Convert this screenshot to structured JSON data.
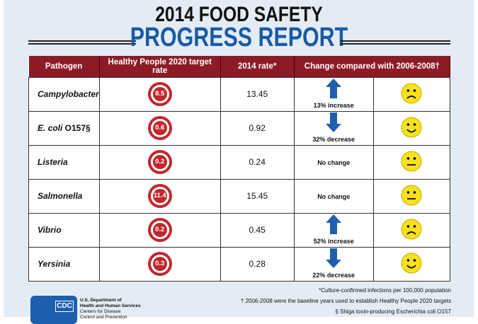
{
  "title_line1": "2014 FOOD SAFETY",
  "title_line2": "PROGRESS REPORT",
  "headers": [
    "Pathogen",
    "Healthy People 2020 target rate",
    "2014 rate*",
    "Change compared with 2006-2008†"
  ],
  "rows": [
    {
      "pathogen": "Campylobacter",
      "pathogen_suffix": "",
      "target": "8.5",
      "rate": "13.45",
      "change": "13% increase",
      "direction": "up",
      "face": "sad"
    },
    {
      "pathogen": "E. coli",
      "pathogen_suffix": " O157§",
      "target": "0.6",
      "rate": "0.92",
      "change": "32% decrease",
      "direction": "down",
      "face": "happy"
    },
    {
      "pathogen": "Listeria",
      "pathogen_suffix": "",
      "target": "0.2",
      "rate": "0.24",
      "change": "No change",
      "direction": "none",
      "face": "neutral"
    },
    {
      "pathogen": "Salmonella",
      "pathogen_suffix": "",
      "target": "11.4",
      "rate": "15.45",
      "change": "No change",
      "direction": "none",
      "face": "neutral"
    },
    {
      "pathogen": "Vibrio",
      "pathogen_suffix": "",
      "target": "0.2",
      "rate": "0.45",
      "change": "52% increase",
      "direction": "up",
      "face": "sad"
    },
    {
      "pathogen": "Yersinia",
      "pathogen_suffix": "",
      "target": "0.3",
      "rate": "0.28",
      "change": "22% decrease",
      "direction": "down",
      "face": "happy"
    }
  ],
  "footnotes": [
    "*Culture-confirmed infections per 100,000 population",
    "† 2006-2008 were the baseline years used to establish Healthy People 2020 targets",
    "§ Shiga toxin-producing Escherichia coli O157"
  ],
  "logo": {
    "text": "CDC",
    "dept_lines": [
      "U.S. Department of",
      "Health and Human Services",
      "Centers for Disease",
      "Control and Prevention"
    ]
  },
  "colors": {
    "header": "#8d1b25",
    "title_blue": "#1a5aa6",
    "target_red": "#c1272d",
    "arrow_blue": "#1f5fae",
    "face_yellow": "#f7e11b"
  }
}
